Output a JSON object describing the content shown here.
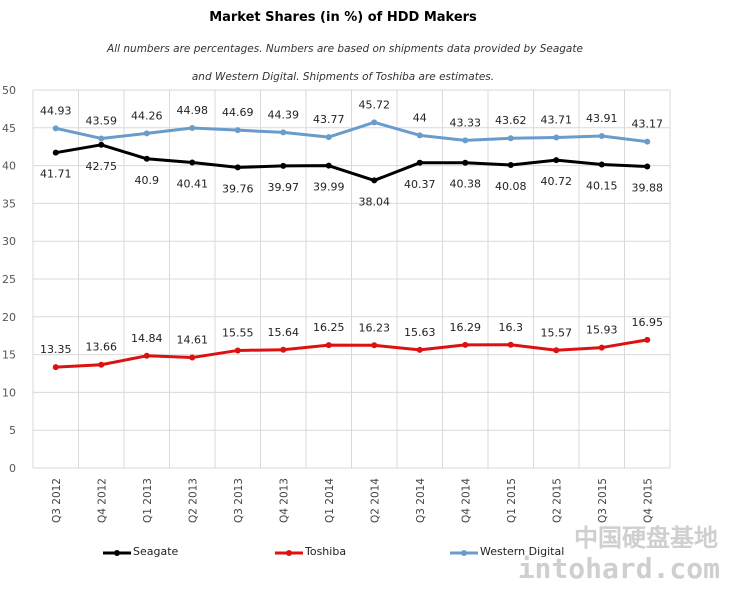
{
  "chart_data": {
    "type": "line",
    "title": "Market Shares (in %) of HDD Makers",
    "subtitle": [
      "All numbers  are percentages.  Numbers are based on  shipments data provided by Seagate",
      "and Western Digital. Shipments  of Toshiba are estimates."
    ],
    "xlabel": "",
    "ylabel": "",
    "ylim": [
      0,
      50
    ],
    "yticks": [
      0,
      5,
      10,
      15,
      20,
      25,
      30,
      35,
      40,
      45,
      50
    ],
    "grid": true,
    "legend_position": "bottom",
    "categories": [
      "Q3 2012",
      "Q4 2012",
      "Q1 2013",
      "Q2 2013",
      "Q3 2013",
      "Q4 2013",
      "Q1 2014",
      "Q2 2014",
      "Q3 2014",
      "Q4 2014",
      "Q1 2015",
      "Q2 2015",
      "Q3 2015",
      "Q4 2015"
    ],
    "series": [
      {
        "name": "Western Digital",
        "color": "#6a9ccb",
        "label_position": "above",
        "values": [
          44.93,
          43.59,
          44.26,
          44.98,
          44.69,
          44.39,
          43.77,
          45.72,
          44,
          43.33,
          43.62,
          43.71,
          43.91,
          43.17
        ],
        "labels": [
          "44.93",
          "43.59",
          "44.26",
          "44.98",
          "44.69",
          "44.39",
          "43.77",
          "45.72",
          "44",
          "43.33",
          "43.62",
          "43.71",
          "43.91",
          "43.17"
        ]
      },
      {
        "name": "Seagate",
        "color": "#000000",
        "label_position": "below",
        "values": [
          41.71,
          42.75,
          40.9,
          40.41,
          39.76,
          39.97,
          39.99,
          38.04,
          40.37,
          40.38,
          40.08,
          40.72,
          40.15,
          39.88
        ],
        "labels": [
          "41.71",
          "42.75",
          "40.9",
          "40.41",
          "39.76",
          "39.97",
          "39.99",
          "38.04",
          "40.37",
          "40.38",
          "40.08",
          "40.72",
          "40.15",
          "39.88"
        ]
      },
      {
        "name": "Toshiba",
        "color": "#dd1111",
        "label_position": "above",
        "values": [
          13.35,
          13.66,
          14.84,
          14.61,
          15.55,
          15.64,
          16.25,
          16.23,
          15.63,
          16.29,
          16.3,
          15.57,
          15.93,
          16.95
        ],
        "labels": [
          "13.35",
          "13.66",
          "14.84",
          "14.61",
          "15.55",
          "15.64",
          "16.25",
          "16.23",
          "15.63",
          "16.29",
          "16.3",
          "15.57",
          "15.93",
          "16.95"
        ]
      }
    ],
    "legend_order": [
      "Seagate",
      "Toshiba",
      "Western Digital"
    ]
  },
  "watermark": {
    "line1": "中国硬盘基地",
    "line2": "intohard.com"
  }
}
